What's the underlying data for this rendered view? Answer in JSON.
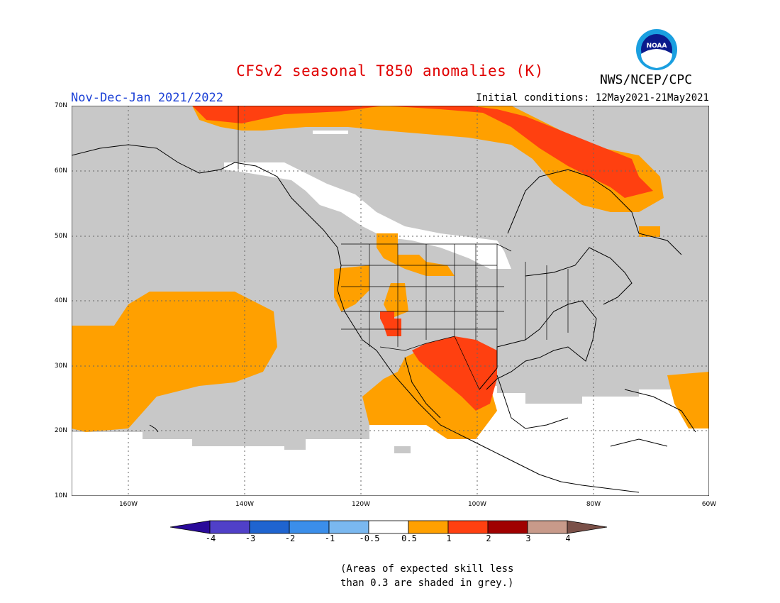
{
  "header": {
    "title": "CFSv2 seasonal T850 anomalies (K)",
    "period": "Nov-Dec-Jan 2021/2022",
    "initial_conditions": "Initial conditions: 12May2021-21May2021",
    "agency": "NWS/NCEP/CPC",
    "logo_text": "NOAA"
  },
  "map": {
    "lat_labels": [
      "70N",
      "60N",
      "50N",
      "40N",
      "30N",
      "20N",
      "10N"
    ],
    "lon_labels": [
      "160W",
      "140W",
      "120W",
      "100W",
      "80W",
      "60W"
    ],
    "grey_meaning": "skill less than 0.3"
  },
  "colorbar": {
    "labels": [
      "-4",
      "-3",
      "-2",
      "-1",
      "-0.5",
      "0.5",
      "1",
      "2",
      "3",
      "4"
    ],
    "colors": [
      "#2a0a9a",
      "#5040c8",
      "#1f64d0",
      "#3b8eea",
      "#7ab8f0",
      "#ffffff",
      "#ffa000",
      "#ff4010",
      "#a00000",
      "#c89a8a",
      "#7a5048"
    ]
  },
  "footnote": {
    "line1": "(Areas of expected skill less",
    "line2": "than 0.3 are shaded in grey.)"
  }
}
